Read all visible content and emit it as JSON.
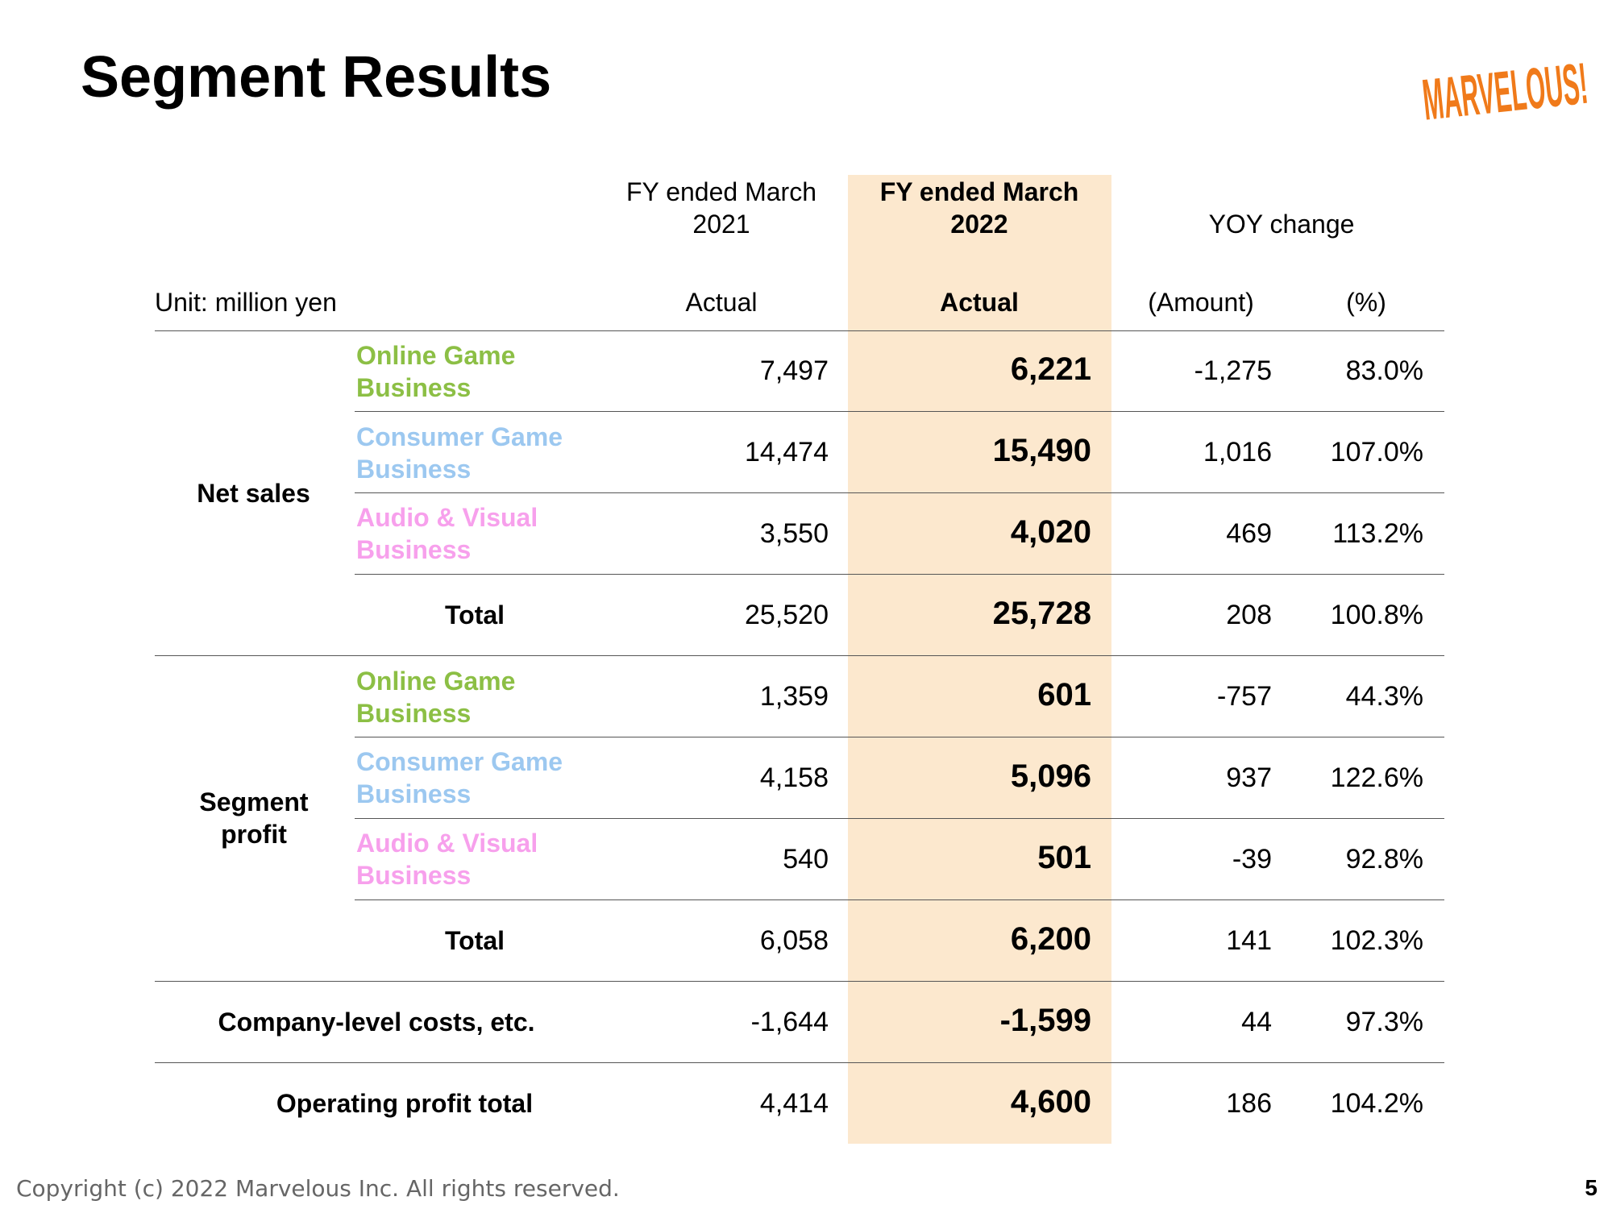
{
  "page": {
    "title": "Segment Results",
    "logo_text": "MARVELOUS!",
    "footer": "Copyright (c) 2022 Marvelous Inc. All rights reserved.",
    "page_number": "5"
  },
  "colors": {
    "online_game": "#8cbf45",
    "consumer_game": "#9cc8f0",
    "audio_visual": "#f7a0ec",
    "highlight_column": "#fce8ce",
    "logo": "#f07a1a"
  },
  "table": {
    "unit": "Unit: million yen",
    "headers": {
      "fy2021": "FY ended March 2021",
      "fy2021_sub": "Actual",
      "fy2022": "FY ended March 2022",
      "fy2022_sub": "Actual",
      "yoy": "YOY change",
      "yoy_amount": "(Amount)",
      "yoy_pct": "(%)"
    },
    "groups": {
      "net_sales": "Net sales",
      "segment_profit": "Segment profit"
    },
    "rows": [
      {
        "label": "Online Game Business",
        "fy2021": "7,497",
        "fy2022": "6,221",
        "amount": "-1,275",
        "pct": "83.0%"
      },
      {
        "label": "Consumer Game Business",
        "fy2021": "14,474",
        "fy2022": "15,490",
        "amount": "1,016",
        "pct": "107.0%"
      },
      {
        "label": "Audio & Visual Business",
        "fy2021": "3,550",
        "fy2022": "4,020",
        "amount": "469",
        "pct": "113.2%"
      },
      {
        "label": "Total",
        "fy2021": "25,520",
        "fy2022": "25,728",
        "amount": "208",
        "pct": "100.8%"
      },
      {
        "label": "Online Game Business",
        "fy2021": "1,359",
        "fy2022": "601",
        "amount": "-757",
        "pct": "44.3%"
      },
      {
        "label": "Consumer Game Business",
        "fy2021": "4,158",
        "fy2022": "5,096",
        "amount": "937",
        "pct": "122.6%"
      },
      {
        "label": "Audio & Visual Business",
        "fy2021": "540",
        "fy2022": "501",
        "amount": "-39",
        "pct": "92.8%"
      },
      {
        "label": "Total",
        "fy2021": "6,058",
        "fy2022": "6,200",
        "amount": "141",
        "pct": "102.3%"
      },
      {
        "label": "Company-level costs, etc.",
        "fy2021": "-1,644",
        "fy2022": "-1,599",
        "amount": "44",
        "pct": "97.3%"
      },
      {
        "label": "Operating profit total",
        "fy2021": "4,414",
        "fy2022": "4,600",
        "amount": "186",
        "pct": "104.2%"
      }
    ]
  }
}
